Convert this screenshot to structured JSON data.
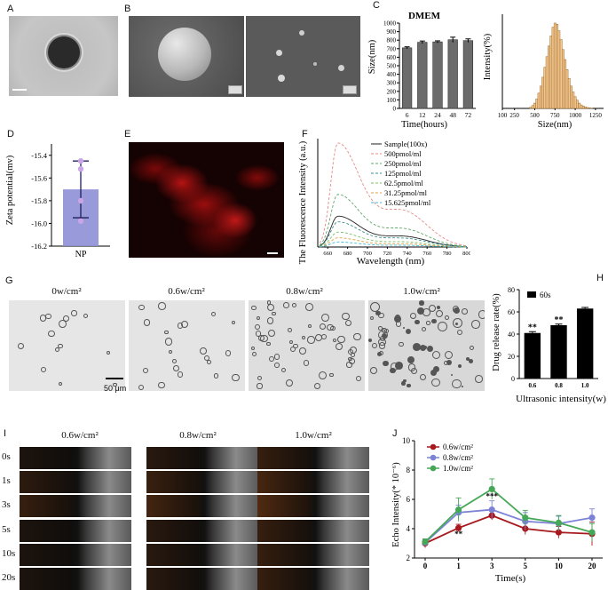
{
  "panels": {
    "A": {
      "label": "A"
    },
    "B": {
      "label": "B"
    },
    "C": {
      "label": "C"
    },
    "D": {
      "label": "D"
    },
    "E": {
      "label": "E"
    },
    "F": {
      "label": "F"
    },
    "G": {
      "label": "G"
    },
    "H": {
      "label": "H"
    },
    "I": {
      "label": "I"
    },
    "J": {
      "label": "J"
    }
  },
  "panel_g": {
    "titles": [
      "0w/cm²",
      "0.6w/cm²",
      "0.8w/cm²",
      "1.0w/cm²"
    ],
    "scale_bar": "50 μm"
  },
  "panel_i": {
    "titles": [
      "0.6w/cm²",
      "0.8w/cm²",
      "1.0w/cm²"
    ],
    "rows": [
      "0s",
      "1s",
      "3s",
      "5s",
      "10s",
      "20s"
    ]
  },
  "chart_data": [
    {
      "id": "C-bar",
      "type": "bar",
      "title": "DMEM",
      "xlabel": "Time(hours)",
      "ylabel": "Size(nm)",
      "categories": [
        "6",
        "12",
        "24",
        "48",
        "72"
      ],
      "values": [
        710,
        775,
        780,
        805,
        795
      ],
      "errors": [
        12,
        15,
        12,
        30,
        20
      ],
      "ylim": [
        0,
        1000
      ],
      "yticks": [
        "0",
        "100",
        "200",
        "300",
        "400",
        "500",
        "600",
        "700",
        "800",
        "900",
        "1000"
      ],
      "color": "#6b6b6b"
    },
    {
      "id": "C-hist",
      "type": "bar",
      "xlabel": "Size(nm)",
      "ylabel": "Intensity(%)",
      "xticks": [
        "100",
        "250",
        "500",
        "750",
        "1000",
        "1250"
      ],
      "bins_x": [
        450,
        475,
        500,
        525,
        550,
        575,
        600,
        625,
        650,
        675,
        700,
        725,
        750,
        775,
        800,
        825,
        850,
        875,
        900,
        925,
        950,
        975,
        1000,
        1025,
        1050,
        1075,
        1100,
        1125,
        1150,
        1175,
        1200
      ],
      "bins_y": [
        0.2,
        0.5,
        0.9,
        1.6,
        2.6,
        3.8,
        5.3,
        7.0,
        8.8,
        10.6,
        12.3,
        13.8,
        14.5,
        14.3,
        13.2,
        11.7,
        10.0,
        8.3,
        6.6,
        5.1,
        3.8,
        2.8,
        2.0,
        1.4,
        0.9,
        0.6,
        0.4,
        0.25,
        0.15,
        0.1,
        0.05
      ],
      "ylim": [
        0,
        16
      ],
      "color": "#f3c78f"
    },
    {
      "id": "D",
      "type": "bar",
      "ylabel": "Zeta potential(mv)",
      "categories": [
        "NP"
      ],
      "values": [
        -15.7
      ],
      "error_high": -15.45,
      "error_low": -15.95,
      "points": [
        -15.45,
        -15.52,
        -15.8,
        -15.98
      ],
      "ylim": [
        -16.2,
        -15.3
      ],
      "yticks": [
        "-16.2",
        "-16.0",
        "-15.8",
        "-15.6",
        "-15.4"
      ],
      "color": "#8e8fd6"
    },
    {
      "id": "F",
      "type": "line",
      "xlabel": "Wavelength  (nm)",
      "ylabel": "The Fluorescence Intensity  (a.u.)",
      "xticks": [
        "660",
        "680",
        "700",
        "720",
        "740",
        "760",
        "780",
        "800"
      ],
      "xlim": [
        650,
        800
      ],
      "ylim": [
        0,
        480
      ],
      "series": [
        {
          "name": "Sample(100x)",
          "color": "#222222",
          "peak": 135
        },
        {
          "name": "500pmol/ml",
          "color": "#e58a8a",
          "peak": 455
        },
        {
          "name": "250pmol/ml",
          "color": "#5fa86a",
          "peak": 230
        },
        {
          "name": "125pmol/ml",
          "color": "#3a8f8f",
          "peak": 110
        },
        {
          "name": "62.5pmol/ml",
          "color": "#7fbf6a",
          "peak": 65
        },
        {
          "name": "31.25pmol/ml",
          "color": "#e0a040",
          "peak": 40
        },
        {
          "name": "15.625pmol/ml",
          "color": "#40b8d8",
          "peak": 22
        }
      ]
    },
    {
      "id": "H",
      "type": "bar",
      "xlabel": "Ultrasonic intensity(w)",
      "ylabel": "Drug release rate(%)",
      "legend": "60s",
      "categories": [
        "0.6",
        "0.8",
        "1.0"
      ],
      "values": [
        41,
        48,
        63
      ],
      "errors": [
        1.2,
        1.0,
        1.0
      ],
      "annotations": [
        "**",
        "**",
        ""
      ],
      "ylim": [
        0,
        80
      ],
      "yticks": [
        "0",
        "20",
        "40",
        "60",
        "80"
      ],
      "color": "#000000"
    },
    {
      "id": "J",
      "type": "line",
      "xlabel": "Time(s)",
      "ylabel": "Echo Intensity(* 10⁻⁶)",
      "categories": [
        "0",
        "1",
        "3",
        "5",
        "10",
        "20"
      ],
      "ylim": [
        2,
        10
      ],
      "yticks": [
        "2",
        "4",
        "6",
        "8",
        "10"
      ],
      "annotations": [
        {
          "x": "1",
          "text": "**"
        },
        {
          "x": "3",
          "text": "***"
        }
      ],
      "series": [
        {
          "name": "0.6w/cm²",
          "color": "#a8191d",
          "values": [
            3.0,
            4.05,
            4.9,
            4.0,
            3.75,
            3.65
          ],
          "errors": [
            0.3,
            0.25,
            0.3,
            0.4,
            0.4,
            0.8
          ]
        },
        {
          "name": "0.8w/cm²",
          "color": "#7c83d6",
          "values": [
            3.05,
            5.1,
            5.3,
            4.5,
            4.35,
            4.75
          ],
          "errors": [
            0.2,
            0.5,
            0.6,
            0.6,
            0.5,
            0.6
          ]
        },
        {
          "name": "1.0w/cm²",
          "color": "#45a857",
          "values": [
            3.1,
            5.3,
            6.7,
            4.75,
            4.4,
            3.75
          ],
          "errors": [
            0.2,
            0.8,
            0.7,
            0.5,
            0.5,
            0.6
          ]
        }
      ]
    }
  ]
}
